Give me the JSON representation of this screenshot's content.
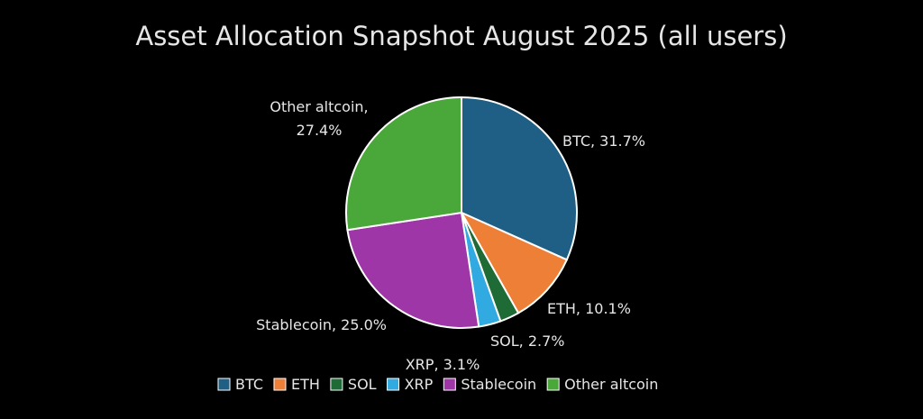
{
  "chart_data": {
    "type": "pie",
    "title": "Asset Allocation Snapshot August 2025 (all users)",
    "slices": [
      {
        "name": "BTC",
        "value": 31.7,
        "label": "BTC, 31.7%",
        "color": "#1f5f86"
      },
      {
        "name": "ETH",
        "value": 10.1,
        "label": "ETH, 10.1%",
        "color": "#ee7f37"
      },
      {
        "name": "SOL",
        "value": 2.7,
        "label": "SOL, 2.7%",
        "color": "#1e6b35"
      },
      {
        "name": "XRP",
        "value": 3.1,
        "label": "XRP, 3.1%",
        "color": "#31a9e1"
      },
      {
        "name": "Stablecoin",
        "value": 25.0,
        "label": "Stablecoin, 25.0%",
        "color": "#9f36a7"
      },
      {
        "name": "Other altcoin",
        "value": 27.4,
        "label": "Other altcoin, 27.4%",
        "color": "#4aa83a"
      }
    ],
    "legend": {
      "position": "bottom",
      "entries": [
        "BTC",
        "ETH",
        "SOL",
        "XRP",
        "Stablecoin",
        "Other altcoin"
      ]
    }
  }
}
